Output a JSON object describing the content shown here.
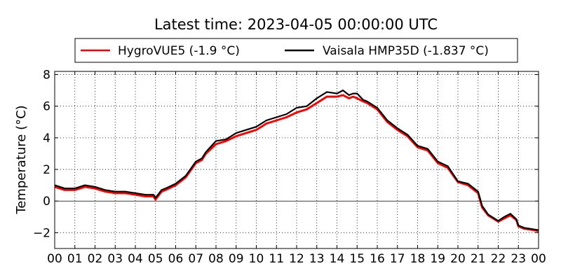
{
  "chart_data": {
    "type": "line",
    "title": "Latest time: 2023-04-05 00:00:00 UTC",
    "xlabel": "",
    "ylabel": "Temperature (°C)",
    "x_tick_labels": [
      "00",
      "01",
      "02",
      "03",
      "04",
      "05",
      "06",
      "07",
      "08",
      "09",
      "10",
      "11",
      "12",
      "13",
      "14",
      "15",
      "16",
      "17",
      "18",
      "19",
      "20",
      "21",
      "22",
      "23",
      "00"
    ],
    "xlim": [
      0,
      24
    ],
    "ylim": [
      -3,
      8.2
    ],
    "y_ticks": [
      -2,
      0,
      2,
      4,
      6,
      8
    ],
    "y_tick_labels": [
      "−2",
      "0",
      "2",
      "4",
      "6",
      "8"
    ],
    "grid": true,
    "zero_line": true,
    "legend_placement": "top-center",
    "x": [
      0,
      0.5,
      1,
      1.5,
      2,
      2.5,
      3,
      3.5,
      4,
      4.5,
      4.9,
      5,
      5.3,
      5.5,
      6,
      6.3,
      6.5,
      7,
      7.3,
      7.5,
      8,
      8.5,
      9,
      9.5,
      10,
      10.5,
      11,
      11.5,
      12,
      12.5,
      13,
      13.5,
      14,
      14.3,
      14.6,
      14.8,
      15,
      15.3,
      15.5,
      16,
      16.5,
      17,
      17.5,
      18,
      18.5,
      19,
      19.5,
      20,
      20.5,
      21,
      21.2,
      21.5,
      22,
      22.3,
      22.6,
      22.9,
      23,
      23.3,
      23.6,
      24
    ],
    "series": [
      {
        "name": "HygroVUE5 (-1.9 °C)",
        "color": "#ff0000",
        "values": [
          0.9,
          0.7,
          0.7,
          0.9,
          0.8,
          0.6,
          0.5,
          0.5,
          0.4,
          0.3,
          0.3,
          0.1,
          0.6,
          0.7,
          1.0,
          1.3,
          1.5,
          2.4,
          2.6,
          3.0,
          3.6,
          3.8,
          4.1,
          4.3,
          4.5,
          4.9,
          5.1,
          5.3,
          5.6,
          5.8,
          6.2,
          6.6,
          6.6,
          6.7,
          6.5,
          6.6,
          6.5,
          6.3,
          6.2,
          5.8,
          5.0,
          4.5,
          4.1,
          3.4,
          3.2,
          2.4,
          2.1,
          1.2,
          1.0,
          0.5,
          -0.4,
          -0.9,
          -1.3,
          -1.1,
          -0.9,
          -1.2,
          -1.6,
          -1.75,
          -1.8,
          -1.9
        ]
      },
      {
        "name": "Vaisala HMP35D (-1.837 °C)",
        "color": "#000000",
        "values": [
          1.0,
          0.8,
          0.8,
          1.0,
          0.9,
          0.7,
          0.6,
          0.6,
          0.5,
          0.4,
          0.4,
          0.2,
          0.7,
          0.8,
          1.1,
          1.4,
          1.6,
          2.5,
          2.7,
          3.1,
          3.8,
          3.9,
          4.3,
          4.5,
          4.7,
          5.1,
          5.3,
          5.5,
          5.9,
          6.0,
          6.5,
          6.9,
          6.8,
          7.0,
          6.7,
          6.8,
          6.8,
          6.4,
          6.3,
          5.9,
          5.1,
          4.6,
          4.2,
          3.5,
          3.3,
          2.5,
          2.2,
          1.25,
          1.1,
          0.6,
          -0.3,
          -0.85,
          -1.25,
          -1.0,
          -0.8,
          -1.15,
          -1.55,
          -1.7,
          -1.75,
          -1.84
        ]
      }
    ]
  }
}
